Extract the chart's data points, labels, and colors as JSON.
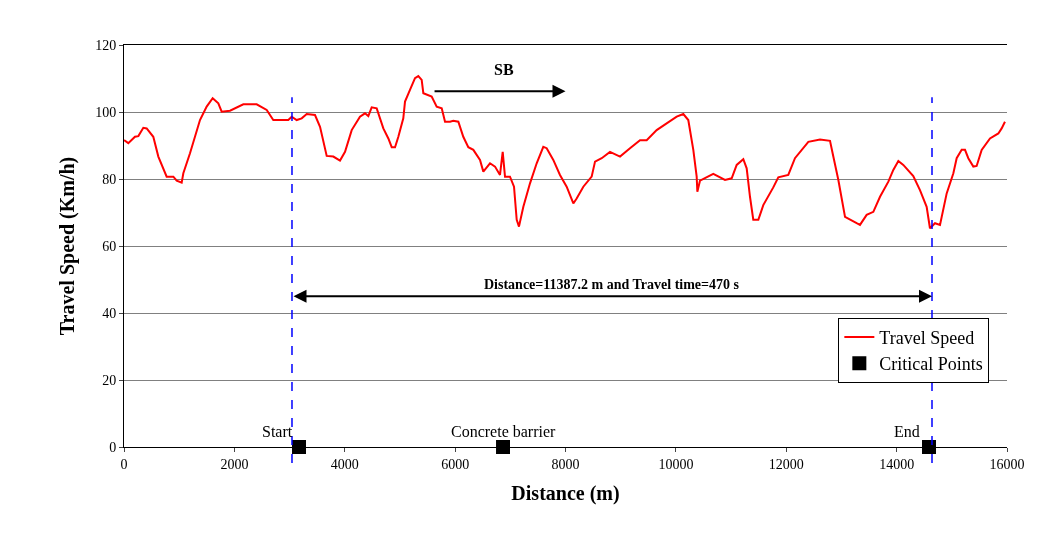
{
  "chart_data": {
    "type": "line",
    "xlabel": "Distance (m)",
    "ylabel": "Travel Speed (Km/h)",
    "xlim": [
      0,
      16000
    ],
    "xticks": [
      0,
      2000,
      4000,
      6000,
      8000,
      10000,
      12000,
      14000,
      16000
    ],
    "ylim": [
      0,
      120
    ],
    "yticks": [
      0,
      20,
      40,
      60,
      80,
      100,
      120
    ],
    "grid": "y",
    "legend": "bottom right",
    "series": [
      {
        "name": "Travel Speed",
        "color": "#ff0000",
        "marker": "none",
        "line_style": "solid",
        "x": [
          0,
          78,
          199,
          260,
          350,
          411,
          531,
          622,
          773,
          894,
          955,
          1045,
          1075,
          1196,
          1377,
          1498,
          1607,
          1709,
          1770,
          1921,
          2162,
          2404,
          2586,
          2705,
          2977,
          3039,
          3129,
          3220,
          3311,
          3461,
          3552,
          3673,
          3793,
          3914,
          4005,
          4126,
          4276,
          4367,
          4427,
          4488,
          4579,
          4699,
          4790,
          4851,
          4911,
          4971,
          5061,
          5092,
          5182,
          5273,
          5333,
          5394,
          5424,
          5575,
          5666,
          5757,
          5817,
          5907,
          5967,
          6058,
          6148,
          6239,
          6330,
          6451,
          6511,
          6632,
          6723,
          6813,
          6862,
          6904,
          6994,
          7067,
          7116,
          7157,
          7236,
          7357,
          7478,
          7598,
          7659,
          7779,
          7900,
          8021,
          8142,
          8202,
          8323,
          8474,
          8535,
          8656,
          8806,
          8988,
          9169,
          9350,
          9471,
          9652,
          9833,
          10015,
          10135,
          10225,
          10316,
          10377,
          10389,
          10437,
          10678,
          10890,
          11011,
          11102,
          11222,
          11283,
          11343,
          11403,
          11494,
          11584,
          11765,
          11856,
          12037,
          12158,
          12400,
          12612,
          12793,
          12853,
          12944,
          13065,
          13276,
          13336,
          13457,
          13578,
          13699,
          13850,
          13940,
          14031,
          14121,
          14302,
          14423,
          14544,
          14604,
          14695,
          14786,
          14907,
          15028,
          15088,
          15179,
          15239,
          15299,
          15390,
          15450,
          15541,
          15692,
          15843,
          15903,
          15963
        ],
        "values": [
          91.6,
          90.7,
          92.6,
          92.8,
          95.3,
          95.1,
          92.6,
          86.7,
          80.7,
          80.7,
          79.5,
          78.9,
          81.7,
          87.7,
          97.6,
          101.6,
          104.1,
          102.6,
          100.1,
          100.4,
          102.3,
          102.3,
          100.6,
          97.6,
          97.6,
          98.6,
          97.6,
          98.1,
          99.4,
          99.1,
          95.6,
          86.9,
          86.7,
          85.5,
          88.1,
          94.6,
          98.6,
          99.6,
          98.8,
          101.4,
          101.1,
          95.1,
          92.1,
          89.5,
          89.5,
          92.6,
          98.1,
          103.1,
          106.6,
          110.1,
          110.7,
          109.6,
          105.6,
          104.6,
          101.6,
          101.1,
          97.1,
          97.1,
          97.4,
          97.1,
          92.6,
          89.5,
          88.7,
          85.7,
          82.2,
          84.7,
          83.7,
          81.2,
          88.1,
          80.7,
          80.7,
          77.7,
          67.8,
          65.8,
          71.7,
          78.7,
          84.7,
          89.6,
          89.2,
          85.7,
          81.2,
          77.7,
          72.7,
          74.2,
          77.7,
          80.7,
          85.2,
          86.2,
          88.1,
          86.7,
          89.2,
          91.6,
          91.6,
          94.6,
          96.6,
          98.6,
          99.4,
          97.6,
          88.7,
          80.7,
          76.2,
          79.5,
          81.5,
          79.7,
          80.2,
          84.2,
          85.9,
          83.2,
          74.7,
          67.8,
          67.8,
          72.2,
          77.5,
          80.5,
          81.2,
          86.2,
          91.1,
          91.8,
          91.4,
          86.7,
          79.7,
          68.7,
          66.8,
          66.3,
          69.3,
          70.2,
          74.7,
          79.2,
          82.7,
          85.4,
          84.2,
          80.9,
          76.7,
          71.7,
          65.3,
          66.8,
          66.3,
          75.7,
          81.7,
          86.2,
          88.7,
          88.7,
          86.2,
          83.7,
          83.9,
          88.7,
          92.1,
          93.6,
          95.1,
          97.1
        ]
      },
      {
        "name": "Critical Points",
        "type": "scatter",
        "color": "#000000",
        "marker": "square",
        "x": [
          3171,
          6868,
          14587
        ],
        "values": [
          0,
          0,
          0
        ]
      }
    ],
    "ref_lines": [
      {
        "axis": "x",
        "value": 3044,
        "color": "#0000ff",
        "line_style": "dashed"
      },
      {
        "axis": "x",
        "value": 14641,
        "color": "#0000ff",
        "line_style": "dashed"
      }
    ],
    "annotations": [
      {
        "text": "Start",
        "x": 3171,
        "y": 0
      },
      {
        "text": "Concrete barrier",
        "x": 6868,
        "y": 0
      },
      {
        "text": "End",
        "x": 14587,
        "y": 0
      },
      "SB",
      "Distance=11387.2 m and Travel time=470 s"
    ]
  }
}
